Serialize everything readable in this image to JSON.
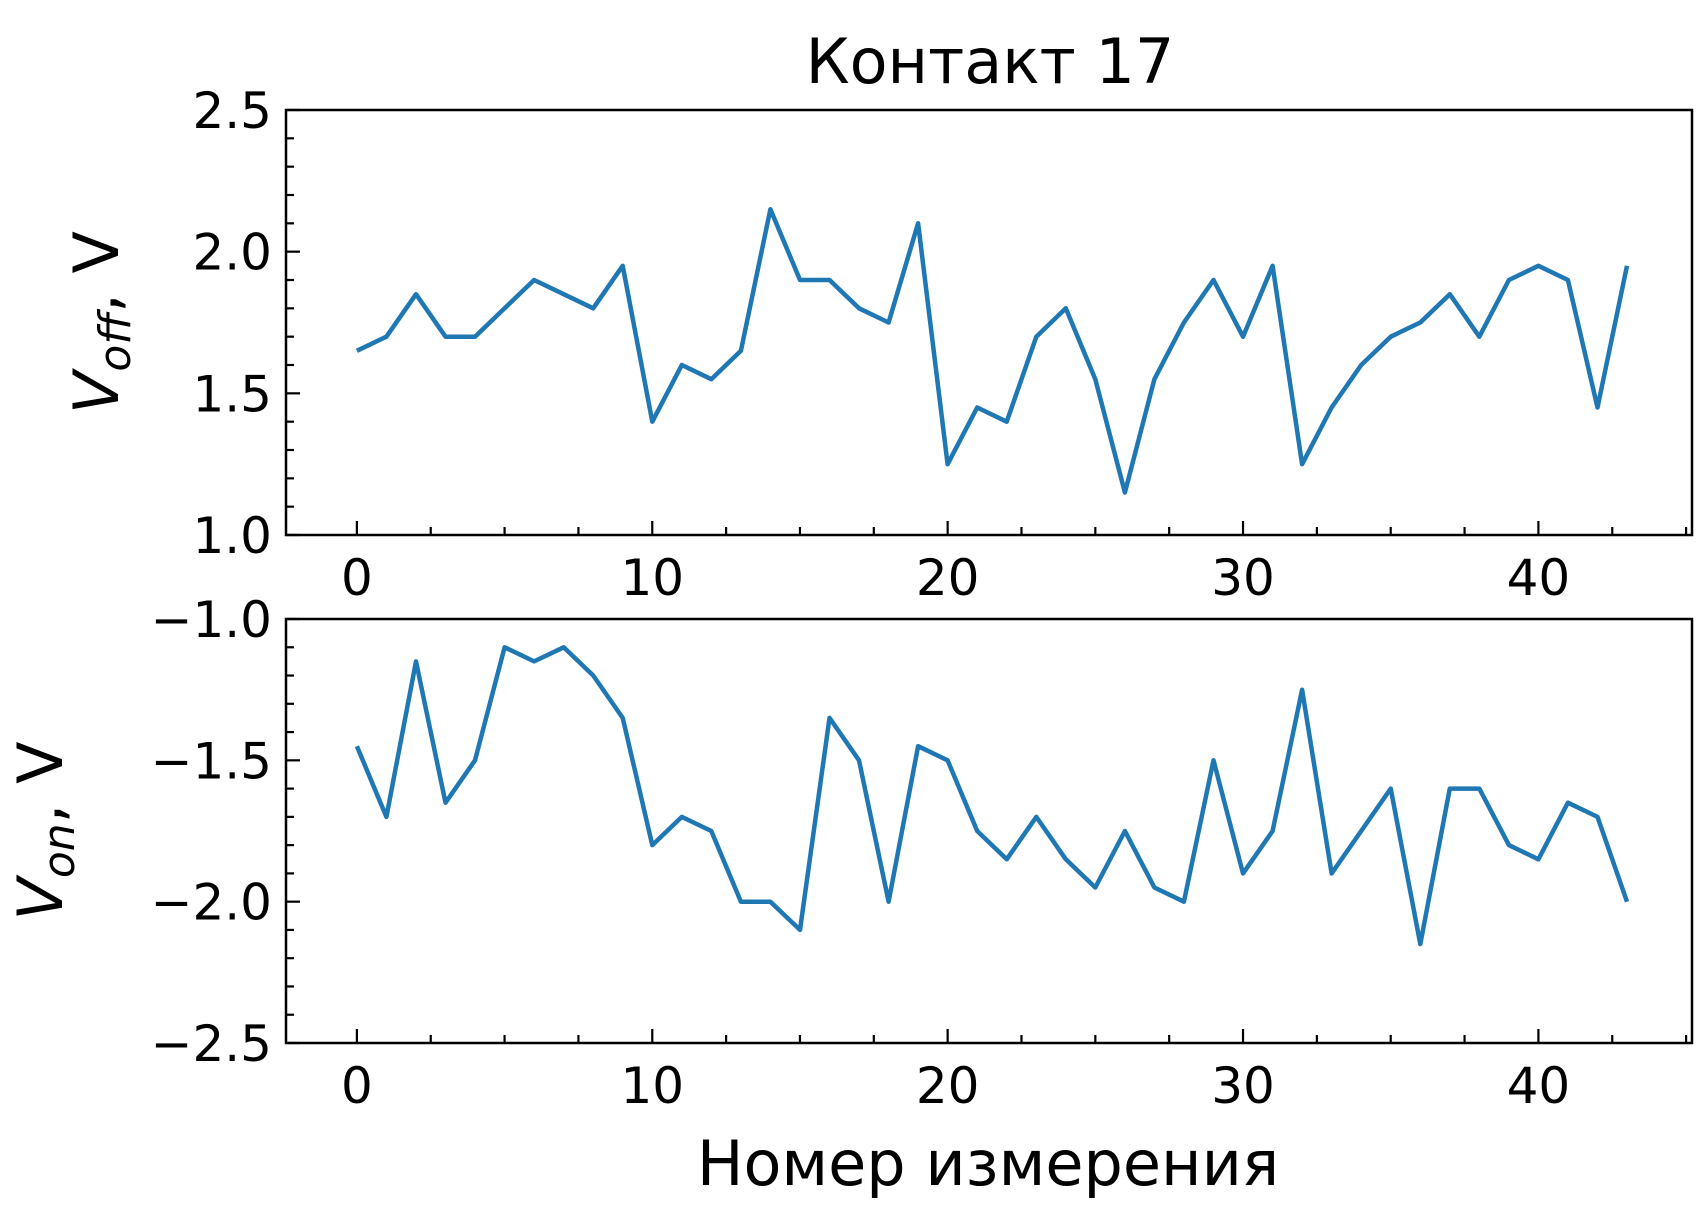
{
  "chart_data": [
    {
      "type": "line",
      "title": "Контакт 17",
      "ylabel_main": "V",
      "ylabel_sub": "off",
      "ylabel_suffix": ",  V",
      "xlim": [
        -2.4,
        45.2
      ],
      "ylim": [
        1.0,
        2.5
      ],
      "xticks": [
        0,
        10,
        20,
        30,
        40
      ],
      "xtick_labels": [
        "0",
        "10",
        "20",
        "30",
        "40"
      ],
      "yticks": [
        1.0,
        1.5,
        2.0,
        2.5
      ],
      "ytick_labels": [
        "1.0",
        "1.5",
        "2.0",
        "2.5"
      ],
      "color": "#1f77b4",
      "x": [
        0,
        1,
        2,
        3,
        4,
        5,
        6,
        7,
        8,
        9,
        10,
        11,
        12,
        13,
        14,
        15,
        16,
        17,
        18,
        19,
        20,
        21,
        22,
        23,
        24,
        25,
        26,
        27,
        28,
        29,
        30,
        31,
        32,
        33,
        34,
        35,
        36,
        37,
        38,
        39,
        40,
        41,
        42,
        43
      ],
      "y": [
        1.65,
        1.7,
        1.85,
        1.7,
        1.7,
        1.8,
        1.9,
        1.85,
        1.8,
        1.95,
        1.4,
        1.6,
        1.55,
        1.65,
        2.15,
        1.9,
        1.9,
        1.8,
        1.75,
        2.1,
        1.25,
        1.45,
        1.4,
        1.7,
        1.8,
        1.55,
        1.15,
        1.55,
        1.75,
        1.9,
        1.7,
        1.95,
        1.25,
        1.45,
        1.6,
        1.7,
        1.75,
        1.85,
        1.7,
        1.9,
        1.95,
        1.9,
        1.45,
        1.95
      ]
    },
    {
      "type": "line",
      "title": "",
      "ylabel_main": "V",
      "ylabel_sub": "on",
      "ylabel_suffix": ",  V",
      "xlabel": "Номер измерения",
      "xlim": [
        -2.4,
        45.2
      ],
      "ylim": [
        -2.5,
        -1.0
      ],
      "xticks": [
        0,
        10,
        20,
        30,
        40
      ],
      "xtick_labels": [
        "0",
        "10",
        "20",
        "30",
        "40"
      ],
      "yticks": [
        -2.5,
        -2.0,
        -1.5,
        -1.0
      ],
      "ytick_labels": [
        "−2.5",
        "−2.0",
        "−1.5",
        "−1.0"
      ],
      "color": "#1f77b4",
      "x": [
        0,
        1,
        2,
        3,
        4,
        5,
        6,
        7,
        8,
        9,
        10,
        11,
        12,
        13,
        14,
        15,
        16,
        17,
        18,
        19,
        20,
        21,
        22,
        23,
        24,
        25,
        26,
        27,
        28,
        29,
        30,
        31,
        32,
        33,
        34,
        35,
        36,
        37,
        38,
        39,
        40,
        41,
        42,
        43
      ],
      "y": [
        -1.45,
        -1.7,
        -1.15,
        -1.65,
        -1.5,
        -1.1,
        -1.15,
        -1.1,
        -1.2,
        -1.35,
        -1.8,
        -1.7,
        -1.75,
        -2.0,
        -2.0,
        -2.1,
        -1.35,
        -1.5,
        -2.0,
        -1.45,
        -1.5,
        -1.75,
        -1.85,
        -1.7,
        -1.85,
        -1.95,
        -1.75,
        -1.95,
        -2.0,
        -1.5,
        -1.9,
        -1.75,
        -1.25,
        -1.9,
        -1.75,
        -1.6,
        -2.15,
        -1.6,
        -1.6,
        -1.8,
        -1.85,
        -1.65,
        -1.7,
        -2.0
      ]
    }
  ]
}
